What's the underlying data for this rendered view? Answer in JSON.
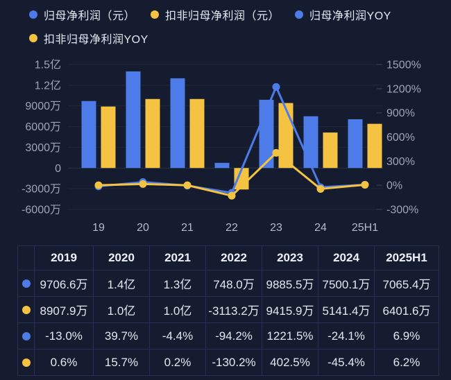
{
  "accent_colors": {
    "blue": "#4d7ce9",
    "yellow": "#f5c342",
    "background": "#151c30"
  },
  "legend": {
    "items": [
      {
        "label": "归母净利润（元）",
        "color": "#4d7ce9"
      },
      {
        "label": "扣非归母净利润（元）",
        "color": "#f5c342"
      },
      {
        "label": "归母净利润YOY",
        "color": "#4d7ce9"
      },
      {
        "label": "扣非归母净利润YOY",
        "color": "#f5c342"
      }
    ]
  },
  "chart_data": {
    "type": "bar+line",
    "categories": [
      "19",
      "20",
      "21",
      "22",
      "23",
      "24",
      "25H1"
    ],
    "bar_series": [
      {
        "name": "归母净利润（元）",
        "color": "#4d7ce9",
        "unit": "万元",
        "values": [
          9706.6,
          14000,
          13000,
          748.0,
          9885.5,
          7500.1,
          7065.4
        ]
      },
      {
        "name": "扣非归母净利润（元）",
        "color": "#f5c342",
        "unit": "万元",
        "values": [
          8907.9,
          10000,
          10000,
          -3113.2,
          9415.9,
          5141.4,
          6401.6
        ]
      }
    ],
    "line_series": [
      {
        "name": "归母净利润YOY",
        "color": "#4d7ce9",
        "unit": "%",
        "values": [
          -13.0,
          39.7,
          -4.4,
          -94.2,
          1221.5,
          -24.1,
          6.9
        ]
      },
      {
        "name": "扣非归母净利润YOY",
        "color": "#f5c342",
        "unit": "%",
        "values": [
          0.6,
          15.7,
          0.2,
          -130.2,
          402.5,
          -45.4,
          6.2
        ]
      }
    ],
    "left_axis": {
      "unit": "万元",
      "min": -6000,
      "max": 15000,
      "ticks": [
        {
          "label": "1.5亿",
          "value": 15000
        },
        {
          "label": "1.2亿",
          "value": 12000
        },
        {
          "label": "9000万",
          "value": 9000
        },
        {
          "label": "6000万",
          "value": 6000
        },
        {
          "label": "3000万",
          "value": 3000
        },
        {
          "label": "0",
          "value": 0
        },
        {
          "label": "-3000万",
          "value": -3000
        },
        {
          "label": "-6000万",
          "value": -6000
        }
      ]
    },
    "right_axis": {
      "unit": "%",
      "min": -300,
      "max": 1500,
      "ticks": [
        {
          "label": "1500%",
          "value": 1500
        },
        {
          "label": "1200%",
          "value": 1200
        },
        {
          "label": "900%",
          "value": 900
        },
        {
          "label": "600%",
          "value": 600
        },
        {
          "label": "300%",
          "value": 300
        },
        {
          "label": "0%",
          "value": 0
        },
        {
          "label": "-300%",
          "value": -300
        }
      ]
    },
    "grid": true,
    "legend_position": "top"
  },
  "table": {
    "headers": [
      "",
      "2019",
      "2020",
      "2021",
      "2022",
      "2023",
      "2024",
      "2025H1"
    ],
    "rows": [
      {
        "dot_color": "#4d7ce9",
        "legend_ref": "归母净利润（元）",
        "cells": [
          "9706.6万",
          "1.4亿",
          "1.3亿",
          "748.0万",
          "9885.5万",
          "7500.1万",
          "7065.4万"
        ]
      },
      {
        "dot_color": "#f5c342",
        "legend_ref": "扣非归母净利润（元）",
        "cells": [
          "8907.9万",
          "1.0亿",
          "1.0亿",
          "-3113.2万",
          "9415.9万",
          "5141.4万",
          "6401.6万"
        ]
      },
      {
        "dot_color": "#4d7ce9",
        "legend_ref": "归母净利润YOY",
        "cells": [
          "-13.0%",
          "39.7%",
          "-4.4%",
          "-94.2%",
          "1221.5%",
          "-24.1%",
          "6.9%"
        ]
      },
      {
        "dot_color": "#f5c342",
        "legend_ref": "扣非归母净利润YOY",
        "cells": [
          "0.6%",
          "15.7%",
          "0.2%",
          "-130.2%",
          "402.5%",
          "-45.4%",
          "6.2%"
        ]
      }
    ]
  }
}
